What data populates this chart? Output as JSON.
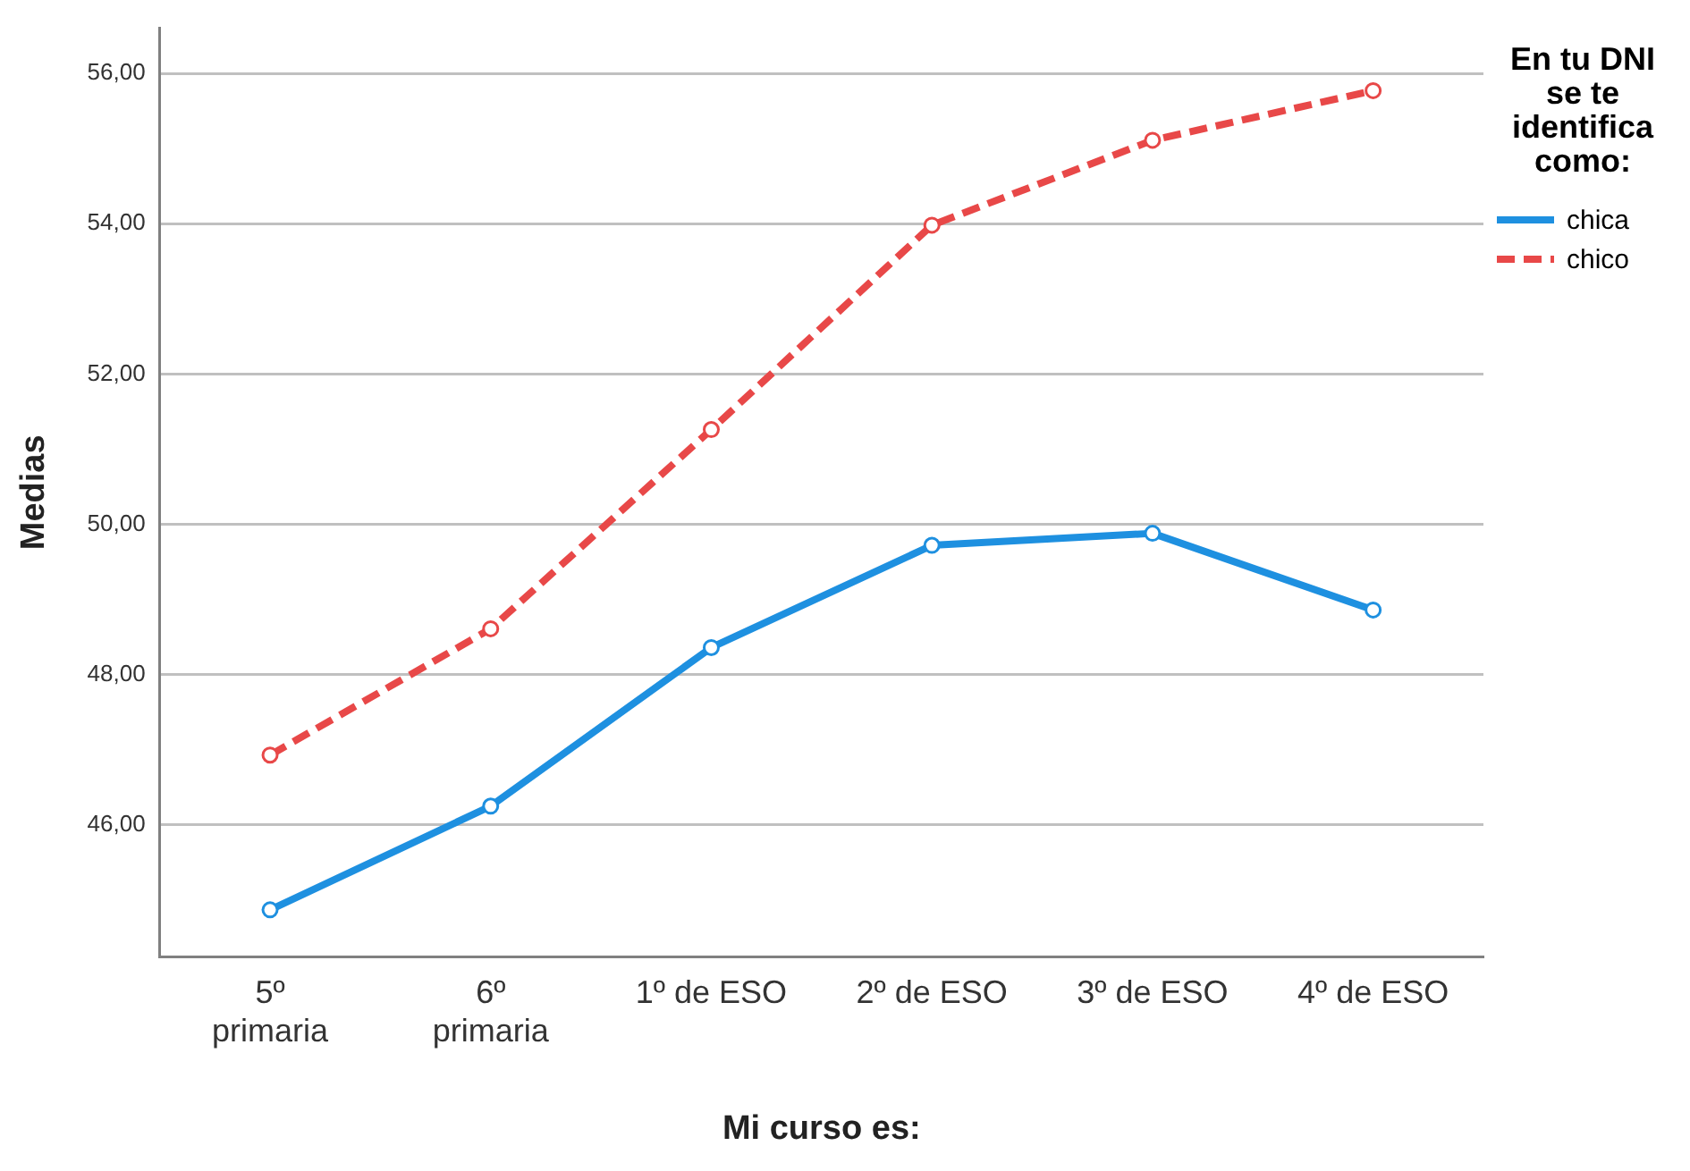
{
  "chart_data": {
    "type": "line",
    "xlabel": "Mi curso es:",
    "ylabel": "Medias",
    "legend_title": "En tu DNI se te identifica como:",
    "legend": "top right",
    "grid": "y",
    "marker": "circle",
    "categories": [
      "5º primaria",
      "6º primaria",
      "1º de ESO",
      "2º de ESO",
      "3º de ESO",
      "4º de ESO"
    ],
    "ylim": [
      44.25,
      56.6
    ],
    "yticks": [
      {
        "value": 46,
        "label": "46,00"
      },
      {
        "value": 48,
        "label": "48,00"
      },
      {
        "value": 50,
        "label": "50,00"
      },
      {
        "value": 52,
        "label": "52,00"
      },
      {
        "value": 54,
        "label": "54,00"
      },
      {
        "value": 56,
        "label": "56,00"
      }
    ],
    "series": [
      {
        "name": "chica",
        "color": "#1e90e0",
        "line_style": "solid",
        "values": [
          44.87,
          46.25,
          48.36,
          49.72,
          49.88,
          48.86
        ]
      },
      {
        "name": "chico",
        "color": "#e84848",
        "line_style": "dashed",
        "values": [
          46.93,
          48.61,
          51.26,
          53.98,
          55.11,
          55.77
        ]
      }
    ]
  }
}
